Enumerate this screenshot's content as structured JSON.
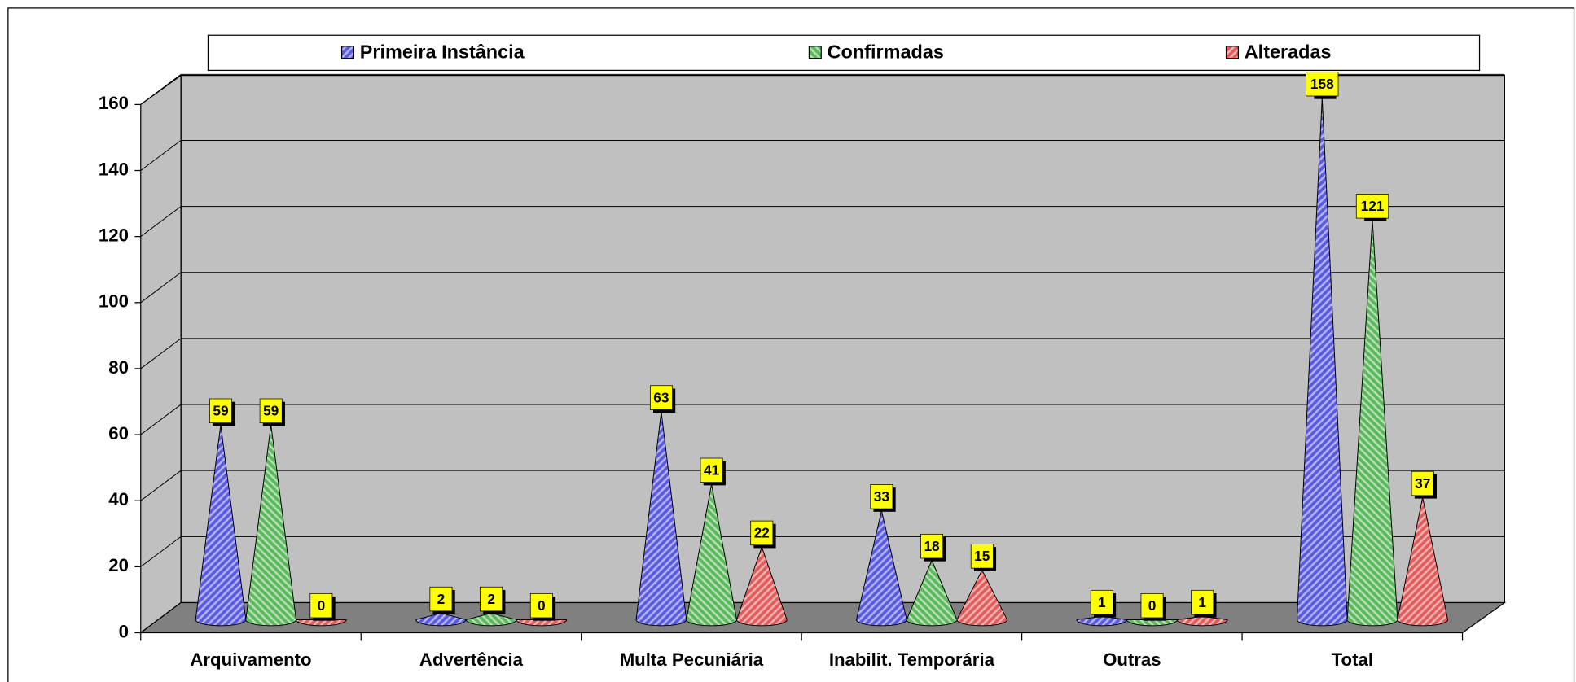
{
  "chart_data": {
    "type": "cone3d",
    "categories": [
      "Arquivamento",
      "Advertência",
      "Multa Pecuniária",
      "Inabilit. Temporária",
      "Outras",
      "Total"
    ],
    "series": [
      {
        "name": "Primeira Instância",
        "color": "#5a5ae6",
        "values": [
          59,
          2,
          63,
          33,
          1,
          158
        ]
      },
      {
        "name": "Confirmadas",
        "color": "#5cb85c",
        "values": [
          59,
          2,
          41,
          18,
          0,
          121
        ]
      },
      {
        "name": "Alteradas",
        "color": "#e65a5a",
        "values": [
          0,
          0,
          22,
          15,
          1,
          37
        ]
      }
    ],
    "ylim": [
      0,
      160
    ],
    "yticks": [
      0,
      20,
      40,
      60,
      80,
      100,
      120,
      140,
      160
    ],
    "grid": true,
    "legend": "top"
  }
}
